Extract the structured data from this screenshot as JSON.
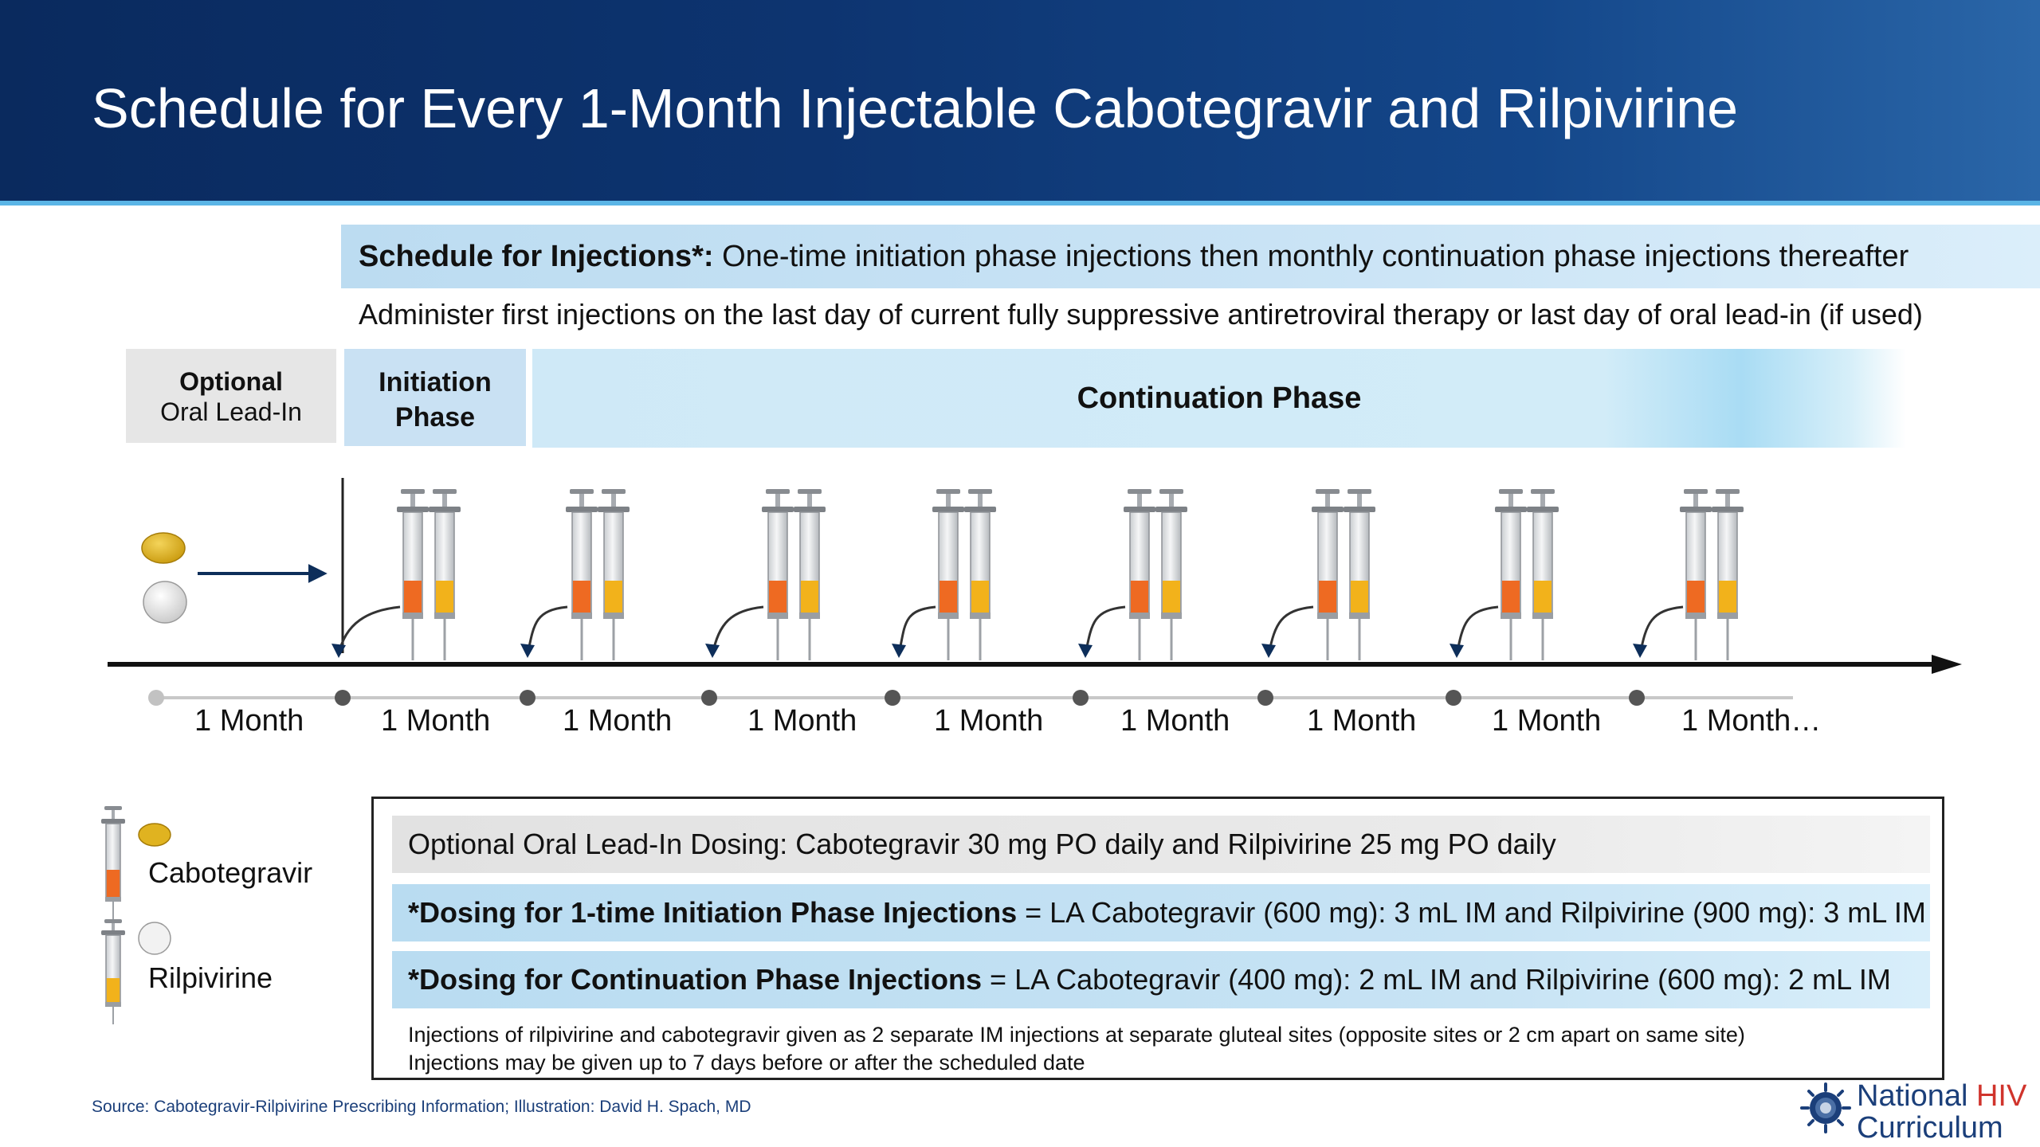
{
  "header": {
    "title": "Schedule for Every 1-Month Injectable Cabotegravir and Rilpivirine"
  },
  "schedule": {
    "label": "Schedule for Injections*:",
    "text": "One-time initiation phase injections then monthly continuation phase injections thereafter",
    "administer": "Administer first injections on the last day of current fully suppressive antiretroviral therapy or last day of oral lead-in (if used)"
  },
  "phases": {
    "lead_in_line1": "Optional",
    "lead_in_line2": "Oral Lead-In",
    "initiation_line1": "Initiation",
    "initiation_line2": "Phase",
    "continuation": "Continuation Phase"
  },
  "timeline": {
    "months": [
      "1 Month",
      "1 Month",
      "1 Month",
      "1 Month",
      "1 Month",
      "1 Month",
      "1 Month",
      "1 Month",
      "1 Month…"
    ]
  },
  "legend": {
    "cabotegravir": "Cabotegravir",
    "rilpivirine": "Rilpivirine"
  },
  "dosing": {
    "oral": "Optional Oral Lead-In Dosing: Cabotegravir 30 mg PO daily and Rilpivirine 25 mg PO daily",
    "initiation_label": "*Dosing for 1-time Initiation Phase Injections",
    "initiation_text": " = LA Cabotegravir (600 mg): 3 mL IM and Rilpivirine (900 mg): 3 mL IM",
    "continuation_label": "*Dosing for Continuation Phase Injections",
    "continuation_text": " = LA Cabotegravir (400 mg): 2 mL IM and Rilpivirine (600 mg): 2 mL IM",
    "note1": "Injections of rilpivirine and cabotegravir given as 2 separate IM injections at separate gluteal sites (opposite sites or 2 cm apart on same site)",
    "note2": "Injections may be given up to 7 days before or after the scheduled date"
  },
  "footer": {
    "source": "Source: Cabotegravir-Rilpivirine Prescribing Information; Illustration: David H. Spach, MD",
    "brand_line1_a": "National ",
    "brand_line1_b": "HIV",
    "brand_line2": "Curriculum"
  },
  "colors": {
    "cabotegravir_fill": "#ee6a22",
    "rilpivirine_fill": "#f2b21b",
    "header_blue": "#0d3470",
    "accent_line": "#5bb5e6"
  }
}
